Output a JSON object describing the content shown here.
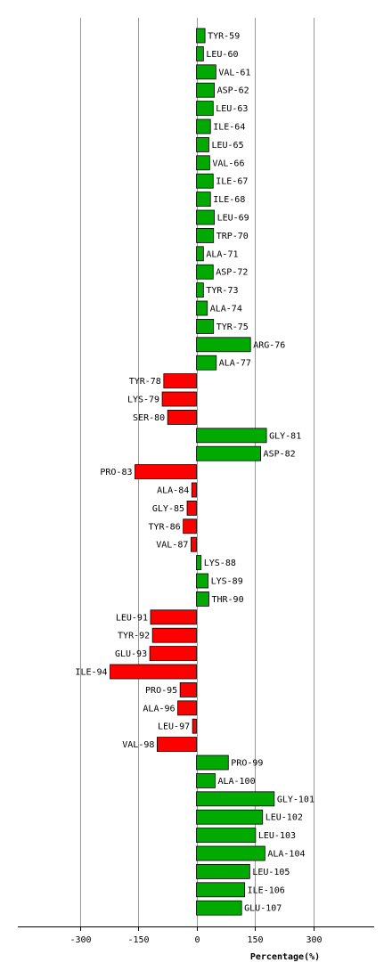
{
  "chart_data": {
    "type": "bar",
    "orientation": "horizontal",
    "categories": [
      "TYR-59",
      "LEU-60",
      "VAL-61",
      "ASP-62",
      "LEU-63",
      "ILE-64",
      "LEU-65",
      "VAL-66",
      "ILE-67",
      "ILE-68",
      "LEU-69",
      "TRP-70",
      "ALA-71",
      "ASP-72",
      "TYR-73",
      "ALA-74",
      "TYR-75",
      "ARG-76",
      "ALA-77",
      "TYR-78",
      "LYS-79",
      "SER-80",
      "GLY-81",
      "ASP-82",
      "PRO-83",
      "ALA-84",
      "GLY-85",
      "TYR-86",
      "VAL-87",
      "LYS-88",
      "LYS-89",
      "THR-90",
      "LEU-91",
      "TYR-92",
      "GLU-93",
      "ILE-94",
      "PRO-95",
      "ALA-96",
      "LEU-97",
      "VAL-98",
      "PRO-99",
      "ALA-100",
      "GLY-101",
      "LEU-102",
      "LEU-103",
      "ALA-104",
      "LEU-105",
      "ILE-106",
      "GLU-107"
    ],
    "values": [
      22,
      18,
      50,
      46,
      43,
      36,
      32,
      34,
      43,
      36,
      46,
      44,
      18,
      43,
      18,
      28,
      44,
      139,
      51,
      -84,
      -88,
      -74,
      180,
      165,
      -158,
      -12,
      -24,
      -34,
      -14,
      12,
      30,
      32,
      -118,
      -113,
      -120,
      -222,
      -42,
      -48,
      -10,
      -101,
      82,
      48,
      200,
      170,
      152,
      176,
      137,
      124,
      116
    ],
    "xlabel": "Percentage(%)",
    "xticks": [
      "-300",
      "-150",
      "0",
      "150",
      "300"
    ],
    "xtick_values": [
      -300,
      -150,
      0,
      150,
      300
    ],
    "xlim": [
      -455,
      455
    ],
    "grid": true,
    "colors": {
      "positive": "#00aa00",
      "negative": "#ff0000",
      "grid": "#999999",
      "bar_edge": "#000000"
    }
  }
}
